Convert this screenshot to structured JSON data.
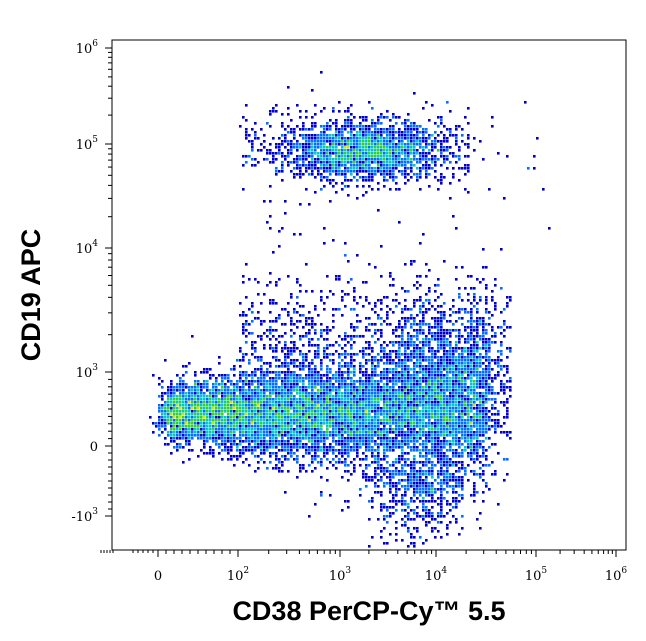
{
  "chart_data": {
    "type": "scatter",
    "subtype": "flow-cytometry pseudocolor density dot plot",
    "xlabel": "CD38 PerCP-Cy™ 5.5",
    "ylabel": "CD19 APC",
    "x_scale": "biexponential",
    "y_scale": "biexponential",
    "x_ticks": [
      {
        "base": "0",
        "exp": "",
        "value": 0
      },
      {
        "base": "10",
        "exp": "2",
        "value": 100
      },
      {
        "base": "10",
        "exp": "3",
        "value": 1000
      },
      {
        "base": "10",
        "exp": "4",
        "value": 10000
      },
      {
        "base": "10",
        "exp": "5",
        "value": 100000
      },
      {
        "base": "10",
        "exp": "6",
        "value": 1000000
      }
    ],
    "y_ticks": [
      {
        "base": "10",
        "exp": "6",
        "value": 1000000
      },
      {
        "base": "10",
        "exp": "5",
        "value": 100000
      },
      {
        "base": "10",
        "exp": "4",
        "value": 10000
      },
      {
        "base": "10",
        "exp": "3",
        "value": 1000
      },
      {
        "base": "0",
        "exp": "",
        "value": 0
      },
      {
        "base": "-10",
        "exp": "3",
        "value": -1000
      }
    ],
    "grid": false,
    "legend": "none",
    "density_colors": [
      "#0000cc",
      "#0070ff",
      "#00c8c8",
      "#30d030",
      "#d8e000",
      "#ff8c00",
      "#e00000"
    ],
    "populations": [
      {
        "x_range": [
          0,
          50000
        ],
        "y_range": [
          -1000,
          3000
        ],
        "peak_x": 150,
        "peak_y": 100,
        "density": "high"
      },
      {
        "x_range": [
          100,
          50000
        ],
        "y_range": [
          20000,
          250000
        ],
        "peak_x": 3000,
        "peak_y": 90000,
        "density": "medium"
      }
    ]
  }
}
